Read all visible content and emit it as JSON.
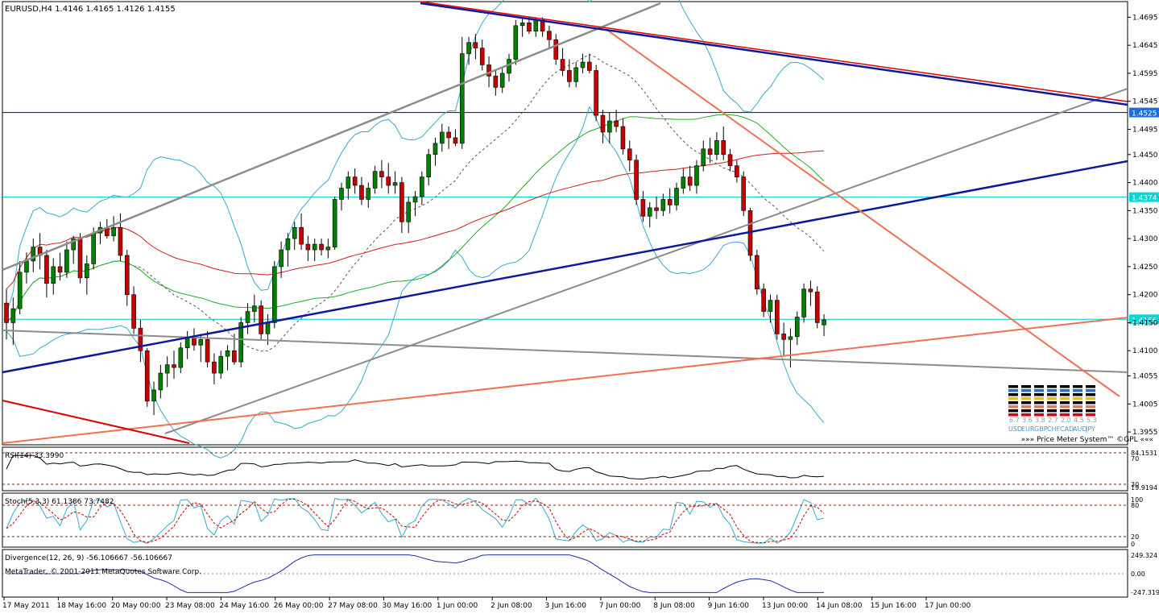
{
  "chart_data": {
    "type": "candlestick",
    "symbol_header": "EURUSD,H4  1.4146 1.4165 1.4126 1.4155",
    "price_axis": {
      "range": [
        1.3935,
        1.472
      ],
      "ticks": [
        "1.4695",
        "1.4645",
        "1.4595",
        "1.4545",
        "1.4495",
        "1.4450",
        "1.4400",
        "1.4350",
        "1.4300",
        "1.4250",
        "1.4200",
        "1.4150",
        "1.4100",
        "1.4055",
        "1.4005",
        "1.3955"
      ]
    },
    "horizontal_levels": [
      {
        "label": "1.4525",
        "color": "#000080",
        "fill": "#1e6fd0"
      },
      {
        "label": "1.4374",
        "color": "#00c8d0",
        "fill": "#00d8d8"
      },
      {
        "label": "1.4156",
        "color": "#00c8d0",
        "fill": "#00d8d8"
      }
    ],
    "time_axis": [
      "17 May 2011",
      "18 May 16:00",
      "20 May 00:00",
      "23 May 08:00",
      "24 May 16:00",
      "26 May 00:00",
      "27 May 08:00",
      "30 May 16:00",
      "1 Jun 00:00",
      "2 Jun 08:00",
      "3 Jun 16:00",
      "7 Jun 00:00",
      "8 Jun 08:00",
      "9 Jun 16:00",
      "13 Jun 00:00",
      "14 Jun 08:00",
      "15 Jun 16:00",
      "17 Jun 00:00"
    ],
    "candles": [
      [
        1.4185,
        1.421,
        1.412,
        1.415
      ],
      [
        1.415,
        1.4195,
        1.411,
        1.4175
      ],
      [
        1.4175,
        1.426,
        1.4165,
        1.424
      ],
      [
        1.424,
        1.4275,
        1.422,
        1.426
      ],
      [
        1.426,
        1.43,
        1.424,
        1.4285
      ],
      [
        1.4285,
        1.431,
        1.4245,
        1.427
      ],
      [
        1.427,
        1.428,
        1.4195,
        1.422
      ],
      [
        1.422,
        1.4265,
        1.42,
        1.425
      ],
      [
        1.425,
        1.4275,
        1.4225,
        1.424
      ],
      [
        1.424,
        1.4295,
        1.423,
        1.428
      ],
      [
        1.428,
        1.4305,
        1.4255,
        1.43
      ],
      [
        1.43,
        1.431,
        1.422,
        1.423
      ],
      [
        1.423,
        1.427,
        1.42,
        1.4255
      ],
      [
        1.4255,
        1.432,
        1.4245,
        1.431
      ],
      [
        1.431,
        1.433,
        1.429,
        1.432
      ],
      [
        1.432,
        1.4335,
        1.43,
        1.4305
      ],
      [
        1.4305,
        1.434,
        1.4295,
        1.432
      ],
      [
        1.432,
        1.4345,
        1.426,
        1.427
      ],
      [
        1.427,
        1.428,
        1.418,
        1.42
      ],
      [
        1.42,
        1.4215,
        1.413,
        1.414
      ],
      [
        1.414,
        1.4155,
        1.408,
        1.41
      ],
      [
        1.41,
        1.4105,
        1.4,
        1.401
      ],
      [
        1.401,
        1.4045,
        1.3985,
        1.403
      ],
      [
        1.403,
        1.4075,
        1.4015,
        1.406
      ],
      [
        1.406,
        1.409,
        1.4035,
        1.4075
      ],
      [
        1.4075,
        1.41,
        1.405,
        1.407
      ],
      [
        1.407,
        1.4115,
        1.406,
        1.4105
      ],
      [
        1.4105,
        1.4135,
        1.4085,
        1.4125
      ],
      [
        1.4125,
        1.414,
        1.41,
        1.411
      ],
      [
        1.411,
        1.413,
        1.408,
        1.412
      ],
      [
        1.412,
        1.4135,
        1.407,
        1.408
      ],
      [
        1.408,
        1.4095,
        1.404,
        1.406
      ],
      [
        1.406,
        1.41,
        1.405,
        1.409
      ],
      [
        1.409,
        1.411,
        1.4065,
        1.41
      ],
      [
        1.41,
        1.413,
        1.4075,
        1.408
      ],
      [
        1.408,
        1.416,
        1.407,
        1.415
      ],
      [
        1.415,
        1.4185,
        1.413,
        1.417
      ],
      [
        1.417,
        1.42,
        1.415,
        1.418
      ],
      [
        1.418,
        1.419,
        1.412,
        1.413
      ],
      [
        1.413,
        1.4165,
        1.411,
        1.415
      ],
      [
        1.415,
        1.426,
        1.414,
        1.425
      ],
      [
        1.425,
        1.4295,
        1.423,
        1.428
      ],
      [
        1.428,
        1.431,
        1.425,
        1.43
      ],
      [
        1.43,
        1.433,
        1.428,
        1.432
      ],
      [
        1.432,
        1.4345,
        1.428,
        1.429
      ],
      [
        1.429,
        1.4305,
        1.426,
        1.428
      ],
      [
        1.428,
        1.43,
        1.426,
        1.429
      ],
      [
        1.429,
        1.43,
        1.427,
        1.428
      ],
      [
        1.428,
        1.43,
        1.4265,
        1.4285
      ],
      [
        1.4285,
        1.4375,
        1.428,
        1.437
      ],
      [
        1.437,
        1.44,
        1.435,
        1.439
      ],
      [
        1.439,
        1.442,
        1.437,
        1.441
      ],
      [
        1.441,
        1.4425,
        1.438,
        1.4395
      ],
      [
        1.4395,
        1.441,
        1.436,
        1.437
      ],
      [
        1.437,
        1.44,
        1.4355,
        1.439
      ],
      [
        1.439,
        1.443,
        1.438,
        1.442
      ],
      [
        1.442,
        1.444,
        1.439,
        1.441
      ],
      [
        1.441,
        1.4435,
        1.438,
        1.4395
      ],
      [
        1.4395,
        1.442,
        1.438,
        1.44
      ],
      [
        1.44,
        1.441,
        1.431,
        1.433
      ],
      [
        1.433,
        1.4375,
        1.431,
        1.4365
      ],
      [
        1.4365,
        1.4385,
        1.434,
        1.4375
      ],
      [
        1.4375,
        1.442,
        1.436,
        1.441
      ],
      [
        1.441,
        1.446,
        1.4395,
        1.445
      ],
      [
        1.445,
        1.448,
        1.443,
        1.447
      ],
      [
        1.447,
        1.4505,
        1.4455,
        1.449
      ],
      [
        1.449,
        1.45,
        1.446,
        1.448
      ],
      [
        1.448,
        1.4495,
        1.4465,
        1.447
      ],
      [
        1.447,
        1.466,
        1.446,
        1.463
      ],
      [
        1.463,
        1.466,
        1.461,
        1.465
      ],
      [
        1.465,
        1.4665,
        1.462,
        1.464
      ],
      [
        1.464,
        1.4655,
        1.46,
        1.461
      ],
      [
        1.461,
        1.4625,
        1.457,
        1.459
      ],
      [
        1.459,
        1.46,
        1.4555,
        1.457
      ],
      [
        1.457,
        1.4605,
        1.456,
        1.4595
      ],
      [
        1.4595,
        1.463,
        1.458,
        1.462
      ],
      [
        1.462,
        1.469,
        1.461,
        1.468
      ],
      [
        1.468,
        1.4695,
        1.466,
        1.4685
      ],
      [
        1.4685,
        1.4695,
        1.4665,
        1.467
      ],
      [
        1.467,
        1.4695,
        1.466,
        1.469
      ],
      [
        1.469,
        1.4695,
        1.466,
        1.467
      ],
      [
        1.467,
        1.468,
        1.464,
        1.4655
      ],
      [
        1.4655,
        1.4665,
        1.461,
        1.462
      ],
      [
        1.462,
        1.464,
        1.459,
        1.46
      ],
      [
        1.46,
        1.462,
        1.457,
        1.458
      ],
      [
        1.458,
        1.4615,
        1.457,
        1.4605
      ],
      [
        1.4605,
        1.463,
        1.4595,
        1.4615
      ],
      [
        1.4615,
        1.463,
        1.4595,
        1.46
      ],
      [
        1.46,
        1.461,
        1.451,
        1.452
      ],
      [
        1.452,
        1.453,
        1.447,
        1.449
      ],
      [
        1.449,
        1.4525,
        1.447,
        1.451
      ],
      [
        1.451,
        1.453,
        1.449,
        1.45
      ],
      [
        1.45,
        1.4515,
        1.445,
        1.446
      ],
      [
        1.446,
        1.4475,
        1.442,
        1.444
      ],
      [
        1.444,
        1.445,
        1.436,
        1.437
      ],
      [
        1.437,
        1.4385,
        1.433,
        1.434
      ],
      [
        1.434,
        1.4365,
        1.432,
        1.4355
      ],
      [
        1.4355,
        1.4375,
        1.4335,
        1.435
      ],
      [
        1.435,
        1.438,
        1.434,
        1.437
      ],
      [
        1.437,
        1.439,
        1.4345,
        1.436
      ],
      [
        1.436,
        1.44,
        1.435,
        1.439
      ],
      [
        1.439,
        1.4425,
        1.438,
        1.441
      ],
      [
        1.441,
        1.443,
        1.4385,
        1.4395
      ],
      [
        1.4395,
        1.444,
        1.438,
        1.443
      ],
      [
        1.443,
        1.4475,
        1.442,
        1.446
      ],
      [
        1.446,
        1.448,
        1.4435,
        1.445
      ],
      [
        1.445,
        1.449,
        1.444,
        1.4475
      ],
      [
        1.4475,
        1.45,
        1.444,
        1.445
      ],
      [
        1.445,
        1.446,
        1.442,
        1.443
      ],
      [
        1.443,
        1.444,
        1.44,
        1.441
      ],
      [
        1.441,
        1.442,
        1.434,
        1.435
      ],
      [
        1.435,
        1.4355,
        1.426,
        1.427
      ],
      [
        1.427,
        1.428,
        1.42,
        1.421
      ],
      [
        1.421,
        1.422,
        1.416,
        1.417
      ],
      [
        1.417,
        1.42,
        1.415,
        1.419
      ],
      [
        1.419,
        1.42,
        1.412,
        1.413
      ],
      [
        1.413,
        1.415,
        1.409,
        1.412
      ],
      [
        1.412,
        1.414,
        1.407,
        1.4125
      ],
      [
        1.4125,
        1.417,
        1.411,
        1.416
      ],
      [
        1.416,
        1.422,
        1.415,
        1.421
      ],
      [
        1.421,
        1.4225,
        1.418,
        1.4205
      ],
      [
        1.4205,
        1.4215,
        1.414,
        1.415
      ],
      [
        1.4146,
        1.4165,
        1.4126,
        1.4155
      ]
    ],
    "indicators": {
      "rsi": {
        "label": "RSI(14) 33.3990",
        "ticks": [
          "84.1531",
          "70",
          "30",
          "19.9194"
        ]
      },
      "stoch": {
        "label": "Stoch(5,3,3) 61.1386 73.7482",
        "ticks": [
          "100",
          "80",
          "20",
          "0"
        ]
      },
      "divergence": {
        "label": "Divergence(12, 26, 9) -56.106667 -56.106667",
        "ticks": [
          "249.324",
          "0.00",
          "-247.319"
        ]
      }
    },
    "price_meter": {
      "title": "»»» Price Meter System™ ©GPL «««",
      "values": [
        "6.7",
        "3.6",
        "3.8",
        "2.7",
        "2.0",
        "4.5",
        "5.3"
      ],
      "currencies": [
        "USD",
        "EUR",
        "GBP",
        "CHF",
        "CAD",
        "AUD",
        "JPY"
      ]
    },
    "copyright": "MetaTrader, © 2001-2011 MetaQuotes Software Corp.",
    "colors": {
      "bull": "#008000",
      "bear": "#c80000",
      "blue_line": "#0b1a9c",
      "grey_line": "#8c8c8c",
      "orange_line": "#f07050",
      "bollinger": "#33aacc"
    }
  }
}
